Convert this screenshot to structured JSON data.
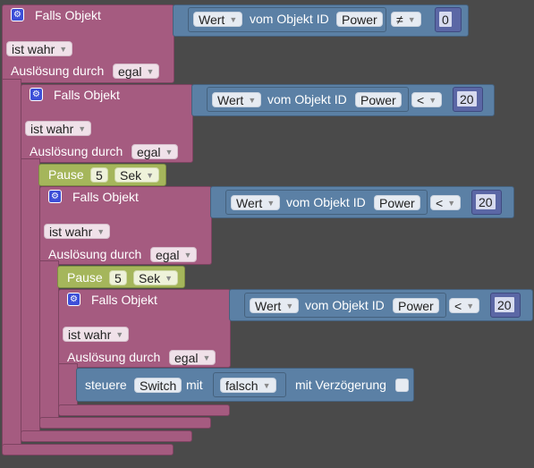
{
  "blocks": {
    "if_label": "Falls Objekt",
    "is_true": "ist wahr",
    "trigger_label": "Auslösung durch",
    "trigger_value": "egal",
    "value_dropdown": "Wert",
    "from_object_id": "vom Objekt ID",
    "object_id": "Power",
    "pause_label": "Pause",
    "pause_amount": "5",
    "pause_unit": "Sek",
    "control_label": "steuere",
    "control_target": "Switch",
    "with_label": "mit",
    "control_value": "falsch",
    "delay_label": "mit Verzögerung"
  },
  "conditions": [
    {
      "operator": "≠",
      "value": "0"
    },
    {
      "operator": "<",
      "value": "20"
    },
    {
      "operator": "<",
      "value": "20"
    },
    {
      "operator": "<",
      "value": "20"
    }
  ],
  "colors": {
    "background": "#4a4a4a",
    "event_block": "#a55b80",
    "value_block": "#5b80a5",
    "pause_block": "#a5b65b",
    "number_block": "#5b67a5",
    "gear_icon": "#3d4fd8"
  }
}
